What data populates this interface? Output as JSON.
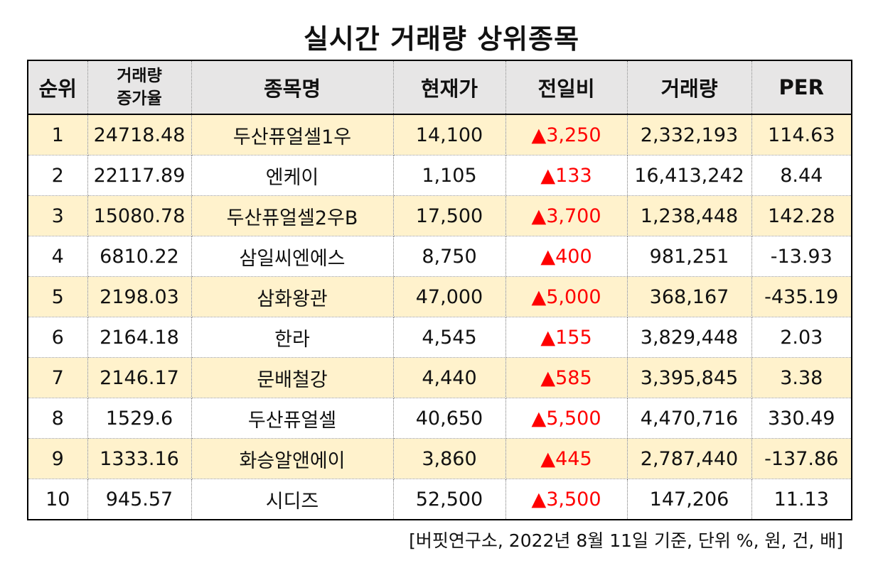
{
  "title": "실시간 거래량 상위종목",
  "table": {
    "headers": {
      "rank": "순위",
      "rate_line1": "거래량",
      "rate_line2": "증가율",
      "name": "종목명",
      "price": "현재가",
      "diff": "전일비",
      "volume": "거래량",
      "per": "PER"
    },
    "rows": [
      {
        "rank": "1",
        "rate": "24718.48",
        "name": "두산퓨얼셀1우",
        "price": "14,100",
        "diff": "▲3,250",
        "volume": "2,332,193",
        "per": "114.63"
      },
      {
        "rank": "2",
        "rate": "22117.89",
        "name": "엔케이",
        "price": "1,105",
        "diff": "▲133",
        "volume": "16,413,242",
        "per": "8.44"
      },
      {
        "rank": "3",
        "rate": "15080.78",
        "name": "두산퓨얼셀2우B",
        "price": "17,500",
        "diff": "▲3,700",
        "volume": "1,238,448",
        "per": "142.28"
      },
      {
        "rank": "4",
        "rate": "6810.22",
        "name": "삼일씨엔에스",
        "price": "8,750",
        "diff": "▲400",
        "volume": "981,251",
        "per": "-13.93"
      },
      {
        "rank": "5",
        "rate": "2198.03",
        "name": "삼화왕관",
        "price": "47,000",
        "diff": "▲5,000",
        "volume": "368,167",
        "per": "-435.19"
      },
      {
        "rank": "6",
        "rate": "2164.18",
        "name": "한라",
        "price": "4,545",
        "diff": "▲155",
        "volume": "3,829,448",
        "per": "2.03"
      },
      {
        "rank": "7",
        "rate": "2146.17",
        "name": "문배철강",
        "price": "4,440",
        "diff": "▲585",
        "volume": "3,395,845",
        "per": "3.38"
      },
      {
        "rank": "8",
        "rate": "1529.6",
        "name": "두산퓨얼셀",
        "price": "40,650",
        "diff": "▲5,500",
        "volume": "4,470,716",
        "per": "330.49"
      },
      {
        "rank": "9",
        "rate": "1333.16",
        "name": "화승알앤에이",
        "price": "3,860",
        "diff": "▲445",
        "volume": "2,787,440",
        "per": "-137.86"
      },
      {
        "rank": "10",
        "rate": "945.57",
        "name": "시디즈",
        "price": "52,500",
        "diff": "▲3,500",
        "volume": "147,206",
        "per": "11.13"
      }
    ]
  },
  "source_note": "[버핏연구소, 2022년 8월 11일 기준, 단위 %, 원, 건, 배]",
  "colors": {
    "header_bg": "#e7e6e6",
    "odd_row_bg": "#fff2cc",
    "even_row_bg": "#ffffff",
    "up_color": "#ff0000"
  }
}
